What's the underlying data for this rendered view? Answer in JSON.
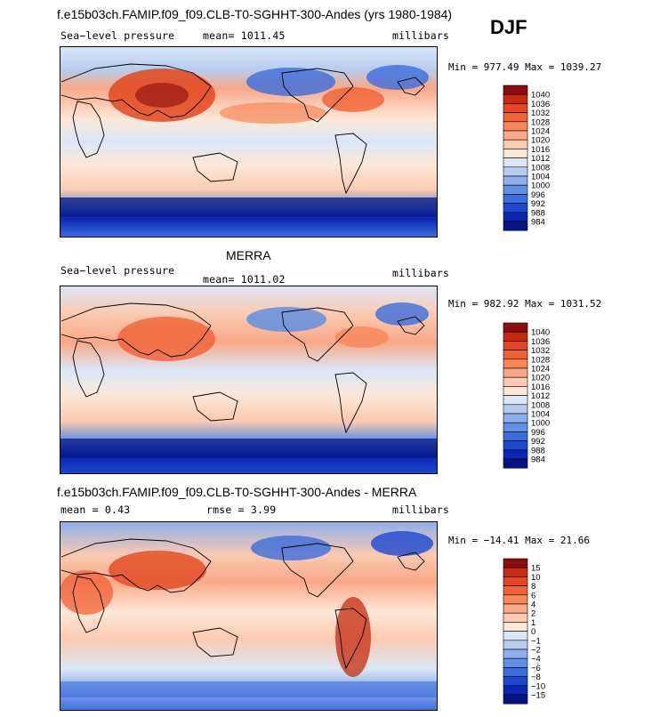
{
  "season": "DJF",
  "panels": [
    {
      "id": "model",
      "title": "f.e15b03ch.FAMIP.f09_f09.CLB-T0-SGHHT-300-Andes (yrs 1980-1984)",
      "variable": "Sea−level pressure",
      "mean_text": "mean= 1011.45",
      "units": "millibars",
      "minmax": "Min = 977.49 Max = 1039.27",
      "colorbar": {
        "labels": [
          "1040",
          "1036",
          "1032",
          "1028",
          "1024",
          "1020",
          "1016",
          "1012",
          "1008",
          "1004",
          "1000",
          "996",
          "992",
          "988",
          "984"
        ],
        "colors": [
          "#8b0d0d",
          "#c62a0f",
          "#e2471f",
          "#f06234",
          "#f7875a",
          "#f9a888",
          "#fbcab1",
          "#fde8d8",
          "#dbe7f6",
          "#b7cdf0",
          "#8daeea",
          "#628fe2",
          "#3c6ddc",
          "#1d47cf",
          "#0a26b2",
          "#051483"
        ]
      }
    },
    {
      "id": "obs",
      "title": "MERRA",
      "variable": "Sea−level pressure",
      "mean_text": "mean= 1011.02",
      "units": "millibars",
      "minmax": "Min = 982.92 Max = 1031.52",
      "colorbar": {
        "labels": [
          "1040",
          "1036",
          "1032",
          "1028",
          "1024",
          "1020",
          "1016",
          "1012",
          "1008",
          "1004",
          "1000",
          "996",
          "992",
          "988",
          "984"
        ],
        "colors": [
          "#8b0d0d",
          "#c62a0f",
          "#e2471f",
          "#f06234",
          "#f7875a",
          "#f9a888",
          "#fbcab1",
          "#fde8d8",
          "#dbe7f6",
          "#b7cdf0",
          "#8daeea",
          "#628fe2",
          "#3c6ddc",
          "#1d47cf",
          "#0a26b2",
          "#051483"
        ]
      }
    },
    {
      "id": "diff",
      "title": "f.e15b03ch.FAMIP.f09_f09.CLB-T0-SGHHT-300-Andes - MERRA",
      "mean_text": "mean =    0.43",
      "rmse_text": "rmse =    3.99",
      "units": "millibars",
      "minmax": "Min = −14.41 Max =  21.66",
      "colorbar": {
        "labels": [
          "15",
          "10",
          "8",
          "6",
          "4",
          "2",
          "1",
          "0",
          "−1",
          "−2",
          "−4",
          "−6",
          "−8",
          "−10",
          "−15"
        ],
        "colors": [
          "#8b0d0d",
          "#c62a0f",
          "#e2471f",
          "#f06234",
          "#f7875a",
          "#f9a888",
          "#fbcab1",
          "#fde8d8",
          "#dbe7f6",
          "#b7cdf0",
          "#8daeea",
          "#628fe2",
          "#3c6ddc",
          "#1d47cf",
          "#0a26b2",
          "#051483"
        ]
      }
    }
  ]
}
